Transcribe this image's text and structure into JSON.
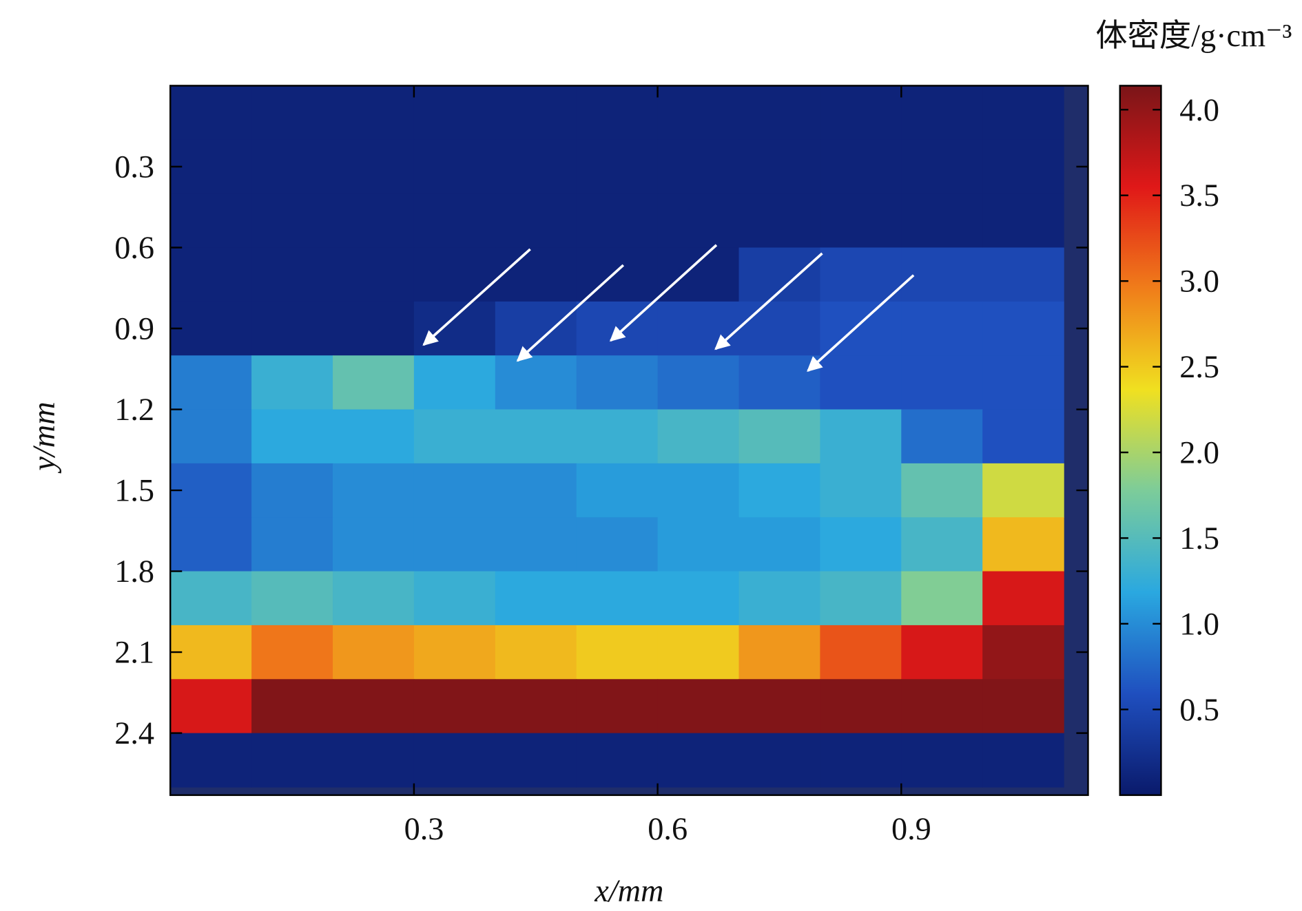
{
  "chart_data": {
    "type": "heatmap",
    "xlabel": "x/mm",
    "ylabel": "y/mm",
    "colorbar_label": "体密度/g·cm⁻³",
    "xlim": [
      0,
      1.13
    ],
    "xticks": [
      0.3,
      0.6,
      0.9
    ],
    "ylim": [
      2.63,
      0
    ],
    "yticks": [
      0.3,
      0.6,
      0.9,
      1.2,
      1.5,
      1.8,
      2.1,
      2.4
    ],
    "clim": [
      0,
      4.14
    ],
    "cticks": [
      0.5,
      {
        "value": 1,
        "label": "1.0"
      },
      1.5,
      {
        "value": 2,
        "label": "2.0"
      },
      2.5,
      {
        "value": 3,
        "label": "3.0"
      },
      3.5,
      {
        "value": 4,
        "label": "4.0"
      }
    ],
    "colormap": [
      "#0a1a6b",
      "#1f4fbf",
      "#2aa8e0",
      "#7ccc9a",
      "#f0e020",
      "#f07d1a",
      "#e01818",
      "#7a1518"
    ],
    "x": [
      0.05,
      0.15,
      0.25,
      0.35,
      0.45,
      0.55,
      0.65,
      0.75,
      0.85,
      0.95,
      1.05
    ],
    "y": [
      0.1,
      0.3,
      0.5,
      0.7,
      0.9,
      1.1,
      1.3,
      1.5,
      1.7,
      1.9,
      2.1,
      2.3,
      2.5
    ],
    "z": [
      [
        0.1,
        0.1,
        0.1,
        0.1,
        0.1,
        0.1,
        0.1,
        0.1,
        0.1,
        0.1,
        0.1
      ],
      [
        0.1,
        0.1,
        0.1,
        0.1,
        0.1,
        0.1,
        0.1,
        0.1,
        0.1,
        0.1,
        0.1
      ],
      [
        0.1,
        0.1,
        0.1,
        0.1,
        0.1,
        0.1,
        0.1,
        0.1,
        0.1,
        0.1,
        0.1
      ],
      [
        0.1,
        0.1,
        0.1,
        0.1,
        0.1,
        0.1,
        0.1,
        0.4,
        0.5,
        0.5,
        0.5
      ],
      [
        0.1,
        0.1,
        0.1,
        0.2,
        0.4,
        0.5,
        0.5,
        0.5,
        0.6,
        0.6,
        0.6
      ],
      [
        0.9,
        1.3,
        1.6,
        1.2,
        1.0,
        0.9,
        0.8,
        0.7,
        0.6,
        0.6,
        0.6
      ],
      [
        0.9,
        1.2,
        1.2,
        1.3,
        1.3,
        1.3,
        1.4,
        1.5,
        1.3,
        0.8,
        0.6
      ],
      [
        0.7,
        0.9,
        1.0,
        1.0,
        1.0,
        1.1,
        1.1,
        1.2,
        1.3,
        1.6,
        2.2
      ],
      [
        0.7,
        0.9,
        1.0,
        1.0,
        1.0,
        1.0,
        1.1,
        1.1,
        1.2,
        1.4,
        2.6
      ],
      [
        1.4,
        1.5,
        1.4,
        1.3,
        1.2,
        1.2,
        1.2,
        1.3,
        1.4,
        1.8,
        3.6
      ],
      [
        2.6,
        3.0,
        2.8,
        2.7,
        2.6,
        2.5,
        2.5,
        2.8,
        3.2,
        3.6,
        4.0
      ],
      [
        3.6,
        4.1,
        4.1,
        4.1,
        4.1,
        4.1,
        4.1,
        4.1,
        4.1,
        4.1,
        4.1
      ],
      [
        0.1,
        0.1,
        0.1,
        0.1,
        0.1,
        0.1,
        0.1,
        0.1,
        0.1,
        0.1,
        0.1
      ]
    ]
  }
}
